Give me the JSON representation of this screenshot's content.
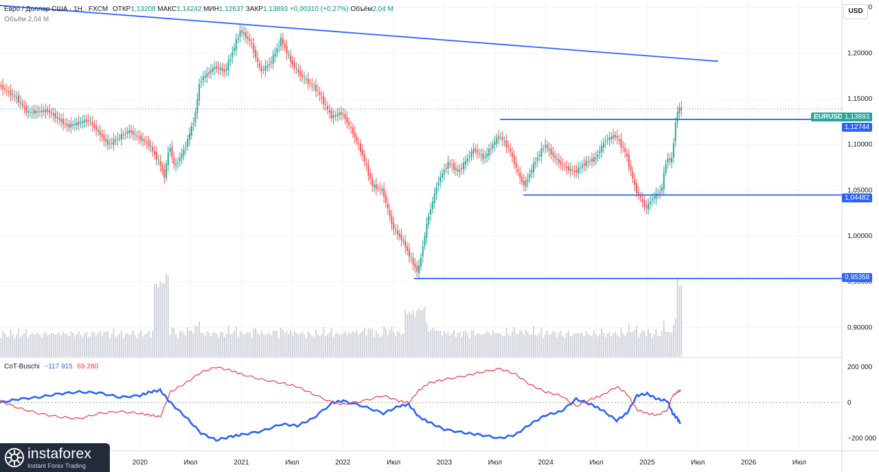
{
  "legend": {
    "symbol": "Евро / Доллар США · 1Н · FXCM",
    "open_label": "ОТКР",
    "open": "1,13208",
    "high_label": "МАКС",
    "high": "1,14242",
    "low_label": "МИН",
    "low": "1,12637",
    "close_label": "ЗАКР",
    "close": "1,13893",
    "change": "+0,00310 (+0,27%)",
    "volume_label": "Объём",
    "volume": "2,04 M"
  },
  "volume_legend": {
    "label": "Объём",
    "value": "2,04 M"
  },
  "indicator": {
    "name": "CoT-Buschi",
    "value1": "−117 915",
    "value2": "69 280"
  },
  "currency_button": "USD",
  "price_tags": {
    "symbol": "EURUSD",
    "current": "1,13893",
    "level1": "1,12744",
    "level2": "1,04482",
    "level3": "0,95358"
  },
  "watermark": {
    "brand": "instaforex",
    "tagline": "Instant Forex Trading"
  },
  "colors": {
    "up": "#26a69a",
    "down": "#ef5350",
    "trend": "#2962ff",
    "cot_blue": "#2962ff",
    "cot_red": "#f23645"
  },
  "chart_data": [
    {
      "type": "candlestick",
      "title": "Евро / Доллар США · 1Н · FXCM",
      "y_axis_ticks": [
        "1,25000",
        "1,20000",
        "1,15000",
        "1,10000",
        "1,05000",
        "1,00000",
        "0,95000",
        "0,90000"
      ],
      "y_tick_values": [
        1.25,
        1.2,
        1.15,
        1.1,
        1.05,
        1.0,
        0.95,
        0.9
      ],
      "x_axis_ticks": [
        "2020",
        "Июл",
        "2021",
        "Июл",
        "2022",
        "Июл",
        "2023",
        "Июл",
        "2024",
        "Июл",
        "2025",
        "Июл",
        "2026",
        "Июл"
      ],
      "x_tick_years": [
        2020.0,
        2020.5,
        2021.0,
        2021.5,
        2022.0,
        2022.5,
        2023.0,
        2023.5,
        2024.0,
        2024.5,
        2025.0,
        2025.5,
        2026.0,
        2026.5
      ],
      "visible_x_range": [
        2018.62,
        2026.92
      ],
      "ylim": [
        0.868,
        1.258
      ],
      "last_price": 1.13893,
      "horizontal_levels": [
        {
          "price": 1.12744,
          "from": 2023.55
        },
        {
          "price": 1.04482,
          "from": 2023.78
        },
        {
          "price": 0.95358,
          "from": 2022.7
        }
      ],
      "trendline": {
        "from": [
          2018.62,
          1.252
        ],
        "to": [
          2025.7,
          1.191
        ]
      },
      "price_path": [
        [
          2018.62,
          1.165
        ],
        [
          2018.8,
          1.15
        ],
        [
          2018.9,
          1.135
        ],
        [
          2019.1,
          1.137
        ],
        [
          2019.3,
          1.12
        ],
        [
          2019.5,
          1.127
        ],
        [
          2019.7,
          1.1
        ],
        [
          2019.9,
          1.115
        ],
        [
          2020.1,
          1.1
        ],
        [
          2020.2,
          1.08
        ],
        [
          2020.25,
          1.065
        ],
        [
          2020.3,
          1.1
        ],
        [
          2020.35,
          1.075
        ],
        [
          2020.45,
          1.095
        ],
        [
          2020.55,
          1.13
        ],
        [
          2020.6,
          1.17
        ],
        [
          2020.75,
          1.185
        ],
        [
          2020.85,
          1.18
        ],
        [
          2021.0,
          1.225
        ],
        [
          2021.1,
          1.212
        ],
        [
          2021.2,
          1.18
        ],
        [
          2021.3,
          1.19
        ],
        [
          2021.4,
          1.215
        ],
        [
          2021.5,
          1.19
        ],
        [
          2021.6,
          1.175
        ],
        [
          2021.75,
          1.16
        ],
        [
          2021.9,
          1.13
        ],
        [
          2022.0,
          1.135
        ],
        [
          2022.1,
          1.115
        ],
        [
          2022.2,
          1.09
        ],
        [
          2022.3,
          1.055
        ],
        [
          2022.4,
          1.05
        ],
        [
          2022.5,
          1.01
        ],
        [
          2022.6,
          0.995
        ],
        [
          2022.7,
          0.97
        ],
        [
          2022.75,
          0.96
        ],
        [
          2022.85,
          1.02
        ],
        [
          2022.95,
          1.06
        ],
        [
          2023.05,
          1.08
        ],
        [
          2023.15,
          1.07
        ],
        [
          2023.3,
          1.095
        ],
        [
          2023.4,
          1.085
        ],
        [
          2023.55,
          1.11
        ],
        [
          2023.65,
          1.095
        ],
        [
          2023.75,
          1.065
        ],
        [
          2023.8,
          1.055
        ],
        [
          2023.9,
          1.08
        ],
        [
          2024.0,
          1.1
        ],
        [
          2024.1,
          1.085
        ],
        [
          2024.2,
          1.075
        ],
        [
          2024.3,
          1.07
        ],
        [
          2024.4,
          1.08
        ],
        [
          2024.5,
          1.085
        ],
        [
          2024.6,
          1.105
        ],
        [
          2024.7,
          1.11
        ],
        [
          2024.8,
          1.09
        ],
        [
          2024.9,
          1.05
        ],
        [
          2024.95,
          1.04
        ],
        [
          2025.0,
          1.03
        ],
        [
          2025.05,
          1.04
        ],
        [
          2025.15,
          1.05
        ],
        [
          2025.2,
          1.085
        ],
        [
          2025.25,
          1.082
        ],
        [
          2025.3,
          1.135
        ],
        [
          2025.33,
          1.139
        ]
      ]
    },
    {
      "type": "line",
      "title": "CoT-Buschi",
      "y_axis_ticks": [
        "200 000",
        "0",
        "−200 000"
      ],
      "y_tick_values": [
        200000,
        0,
        -200000
      ],
      "ylim": [
        -270000,
        250000
      ],
      "series": [
        {
          "name": "",
          "color": "#2962ff",
          "points": [
            [
              2018.62,
              0
            ],
            [
              2018.8,
              20000
            ],
            [
              2019.0,
              30000
            ],
            [
              2019.2,
              50000
            ],
            [
              2019.4,
              60000
            ],
            [
              2019.6,
              55000
            ],
            [
              2019.8,
              30000
            ],
            [
              2020.0,
              40000
            ],
            [
              2020.1,
              60000
            ],
            [
              2020.2,
              70000
            ],
            [
              2020.3,
              0
            ],
            [
              2020.45,
              -80000
            ],
            [
              2020.6,
              -170000
            ],
            [
              2020.75,
              -210000
            ],
            [
              2020.9,
              -190000
            ],
            [
              2021.0,
              -180000
            ],
            [
              2021.2,
              -160000
            ],
            [
              2021.4,
              -120000
            ],
            [
              2021.55,
              -130000
            ],
            [
              2021.7,
              -90000
            ],
            [
              2021.9,
              0
            ],
            [
              2022.0,
              10000
            ],
            [
              2022.2,
              -20000
            ],
            [
              2022.4,
              -60000
            ],
            [
              2022.55,
              -20000
            ],
            [
              2022.65,
              -10000
            ],
            [
              2022.75,
              -80000
            ],
            [
              2022.85,
              -110000
            ],
            [
              2023.0,
              -150000
            ],
            [
              2023.2,
              -170000
            ],
            [
              2023.35,
              -180000
            ],
            [
              2023.55,
              -200000
            ],
            [
              2023.7,
              -180000
            ],
            [
              2023.85,
              -120000
            ],
            [
              2024.0,
              -70000
            ],
            [
              2024.15,
              -50000
            ],
            [
              2024.3,
              20000
            ],
            [
              2024.45,
              -10000
            ],
            [
              2024.55,
              -40000
            ],
            [
              2024.7,
              -100000
            ],
            [
              2024.8,
              -60000
            ],
            [
              2024.9,
              40000
            ],
            [
              2025.0,
              50000
            ],
            [
              2025.1,
              20000
            ],
            [
              2025.2,
              10000
            ],
            [
              2025.25,
              -60000
            ],
            [
              2025.3,
              -90000
            ],
            [
              2025.33,
              -117915
            ]
          ]
        },
        {
          "name": "",
          "color": "#f23645",
          "points": [
            [
              2018.62,
              10000
            ],
            [
              2018.8,
              -30000
            ],
            [
              2019.0,
              -60000
            ],
            [
              2019.2,
              -80000
            ],
            [
              2019.4,
              -90000
            ],
            [
              2019.6,
              -60000
            ],
            [
              2019.8,
              -50000
            ],
            [
              2020.0,
              -60000
            ],
            [
              2020.1,
              -70000
            ],
            [
              2020.2,
              -80000
            ],
            [
              2020.3,
              60000
            ],
            [
              2020.45,
              110000
            ],
            [
              2020.6,
              170000
            ],
            [
              2020.75,
              200000
            ],
            [
              2020.9,
              180000
            ],
            [
              2021.0,
              160000
            ],
            [
              2021.2,
              130000
            ],
            [
              2021.4,
              110000
            ],
            [
              2021.55,
              90000
            ],
            [
              2021.7,
              50000
            ],
            [
              2021.9,
              0
            ],
            [
              2022.0,
              -10000
            ],
            [
              2022.2,
              10000
            ],
            [
              2022.4,
              40000
            ],
            [
              2022.55,
              10000
            ],
            [
              2022.65,
              0
            ],
            [
              2022.75,
              70000
            ],
            [
              2022.85,
              110000
            ],
            [
              2023.0,
              130000
            ],
            [
              2023.2,
              150000
            ],
            [
              2023.35,
              170000
            ],
            [
              2023.55,
              190000
            ],
            [
              2023.7,
              160000
            ],
            [
              2023.85,
              100000
            ],
            [
              2024.0,
              60000
            ],
            [
              2024.15,
              40000
            ],
            [
              2024.3,
              -20000
            ],
            [
              2024.45,
              20000
            ],
            [
              2024.55,
              40000
            ],
            [
              2024.7,
              90000
            ],
            [
              2024.8,
              50000
            ],
            [
              2024.9,
              -40000
            ],
            [
              2025.0,
              -60000
            ],
            [
              2025.1,
              -70000
            ],
            [
              2025.2,
              -40000
            ],
            [
              2025.25,
              40000
            ],
            [
              2025.3,
              60000
            ],
            [
              2025.33,
              69280
            ]
          ]
        }
      ]
    }
  ]
}
